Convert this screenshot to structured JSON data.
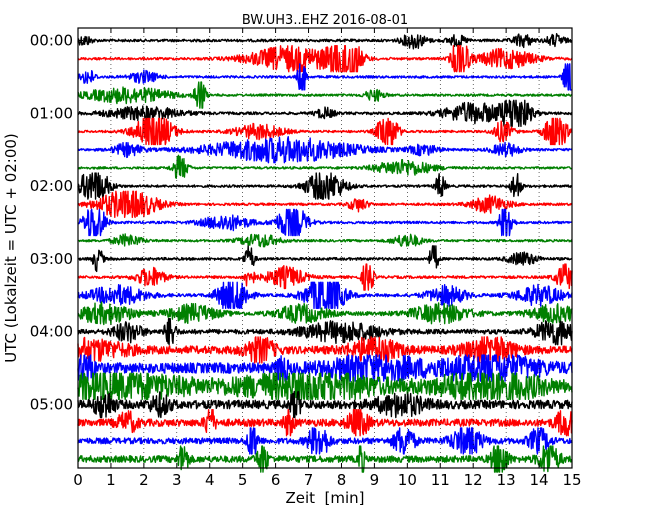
{
  "chart_data": {
    "type": "line",
    "title": "BW.UH3..EHZ 2016-08-01",
    "xlabel": "Zeit  [min]",
    "ylabel": "UTC (Lokalzeit = UTC + 02:00)",
    "xlim": [
      0,
      15
    ],
    "x_ticks": [
      "0",
      "1",
      "2",
      "3",
      "4",
      "5",
      "6",
      "7",
      "8",
      "9",
      "10",
      "11",
      "12",
      "13",
      "14",
      "15"
    ],
    "y_tick_labels": [
      "00:00",
      "01:00",
      "02:00",
      "03:00",
      "04:00",
      "05:00"
    ],
    "grid": true,
    "legend": "none",
    "trace_minutes_per_line": 15,
    "series": [
      {
        "start": "00:00",
        "color": "#000000",
        "noise": 0.2,
        "bursts": [
          [
            0.2,
            0.8,
            0.15
          ],
          [
            10.2,
            1.2,
            0.25
          ],
          [
            11.5,
            0.8,
            0.2
          ],
          [
            13.5,
            1.0,
            0.2
          ],
          [
            14.5,
            0.9,
            0.2
          ]
        ]
      },
      {
        "start": "00:15",
        "color": "#ff0000",
        "noise": 0.18,
        "bursts": [
          [
            6.5,
            2.0,
            0.9
          ],
          [
            8.1,
            4.5,
            0.3
          ],
          [
            11.6,
            5.0,
            0.15
          ],
          [
            13.0,
            1.5,
            0.6
          ]
        ]
      },
      {
        "start": "00:30",
        "color": "#0000ff",
        "noise": 0.18,
        "bursts": [
          [
            0.3,
            1.2,
            0.15
          ],
          [
            2.0,
            0.9,
            0.3
          ],
          [
            6.8,
            3.5,
            0.08
          ],
          [
            14.9,
            4.0,
            0.1
          ]
        ]
      },
      {
        "start": "00:45",
        "color": "#008000",
        "noise": 0.17,
        "bursts": [
          [
            1.5,
            1.2,
            0.9
          ],
          [
            3.7,
            4.0,
            0.1
          ],
          [
            9.0,
            0.9,
            0.2
          ]
        ]
      },
      {
        "start": "01:00",
        "color": "#000000",
        "noise": 0.2,
        "bursts": [
          [
            2.0,
            1.0,
            0.8
          ],
          [
            7.5,
            0.8,
            0.2
          ],
          [
            12.0,
            1.6,
            0.6
          ],
          [
            13.3,
            3.0,
            0.3
          ]
        ]
      },
      {
        "start": "01:15",
        "color": "#ff0000",
        "noise": 0.17,
        "bursts": [
          [
            2.3,
            3.0,
            0.4
          ],
          [
            5.5,
            1.2,
            0.5
          ],
          [
            9.4,
            3.5,
            0.2
          ],
          [
            12.9,
            1.6,
            0.2
          ],
          [
            14.5,
            4.5,
            0.2
          ]
        ]
      },
      {
        "start": "01:30",
        "color": "#0000ff",
        "noise": 0.18,
        "bursts": [
          [
            1.5,
            1.0,
            0.3
          ],
          [
            6.2,
            2.0,
            1.5
          ],
          [
            10.5,
            0.8,
            0.3
          ],
          [
            13.0,
            1.0,
            0.3
          ]
        ]
      },
      {
        "start": "01:45",
        "color": "#008000",
        "noise": 0.17,
        "bursts": [
          [
            3.1,
            2.0,
            0.15
          ],
          [
            9.9,
            1.2,
            0.6
          ]
        ]
      },
      {
        "start": "02:00",
        "color": "#000000",
        "noise": 0.18,
        "bursts": [
          [
            0.5,
            3.0,
            0.3
          ],
          [
            7.5,
            2.5,
            0.4
          ],
          [
            11.0,
            2.0,
            0.1
          ],
          [
            13.3,
            2.5,
            0.1
          ]
        ]
      },
      {
        "start": "02:15",
        "color": "#ff0000",
        "noise": 0.18,
        "bursts": [
          [
            1.5,
            2.5,
            0.6
          ],
          [
            8.5,
            1.0,
            0.2
          ],
          [
            12.5,
            1.3,
            0.4
          ]
        ]
      },
      {
        "start": "02:30",
        "color": "#0000ff",
        "noise": 0.18,
        "bursts": [
          [
            0.5,
            4.0,
            0.2
          ],
          [
            4.5,
            1.2,
            0.5
          ],
          [
            6.5,
            3.0,
            0.3
          ],
          [
            13.0,
            4.5,
            0.12
          ]
        ]
      },
      {
        "start": "02:45",
        "color": "#008000",
        "noise": 0.17,
        "bursts": [
          [
            1.5,
            0.9,
            0.3
          ],
          [
            5.5,
            1.0,
            0.4
          ],
          [
            10.0,
            1.0,
            0.3
          ]
        ]
      },
      {
        "start": "03:00",
        "color": "#000000",
        "noise": 0.2,
        "bursts": [
          [
            0.6,
            2.0,
            0.1
          ],
          [
            5.2,
            2.2,
            0.1
          ],
          [
            10.8,
            3.2,
            0.08
          ],
          [
            13.5,
            1.0,
            0.3
          ]
        ]
      },
      {
        "start": "03:15",
        "color": "#ff0000",
        "noise": 0.2,
        "bursts": [
          [
            2.2,
            1.5,
            0.3
          ],
          [
            5.2,
            1.8,
            0.1
          ],
          [
            6.3,
            1.6,
            0.4
          ],
          [
            8.8,
            4.0,
            0.1
          ],
          [
            14.8,
            2.0,
            0.2
          ]
        ]
      },
      {
        "start": "03:30",
        "color": "#0000ff",
        "noise": 0.22,
        "bursts": [
          [
            1.2,
            1.5,
            0.6
          ],
          [
            4.7,
            3.5,
            0.3
          ],
          [
            7.5,
            3.5,
            0.4
          ],
          [
            11.2,
            1.5,
            0.4
          ],
          [
            14.0,
            1.5,
            0.5
          ]
        ]
      },
      {
        "start": "03:45",
        "color": "#008000",
        "noise": 0.3,
        "bursts": [
          [
            0.8,
            1.5,
            0.6
          ],
          [
            3.5,
            1.3,
            0.5
          ],
          [
            6.8,
            1.3,
            0.5
          ],
          [
            11.0,
            1.4,
            0.6
          ],
          [
            14.5,
            1.3,
            0.5
          ]
        ]
      },
      {
        "start": "04:00",
        "color": "#000000",
        "noise": 0.35,
        "bursts": [
          [
            2.8,
            3.2,
            0.1
          ],
          [
            1.5,
            1.5,
            0.3
          ],
          [
            8.0,
            1.5,
            0.8
          ],
          [
            14.5,
            2.0,
            0.4
          ]
        ]
      },
      {
        "start": "04:15",
        "color": "#ff0000",
        "noise": 0.6,
        "bursts": [
          [
            0.3,
            1.5,
            0.8
          ],
          [
            5.5,
            2.0,
            0.3
          ],
          [
            9.0,
            1.8,
            0.5
          ],
          [
            12.5,
            2.0,
            0.5
          ]
        ]
      },
      {
        "start": "04:30",
        "color": "#0000ff",
        "noise": 0.8,
        "bursts": [
          [
            0.2,
            2.5,
            0.2
          ],
          [
            6.2,
            3.0,
            0.1
          ],
          [
            9.0,
            1.8,
            1.0
          ],
          [
            12.5,
            2.0,
            1.0
          ]
        ]
      },
      {
        "start": "04:45",
        "color": "#008000",
        "noise": 0.85,
        "bursts": [
          [
            1.0,
            2.0,
            1.5
          ],
          [
            7.0,
            2.0,
            1.5
          ],
          [
            12.5,
            2.5,
            1.0
          ]
        ]
      },
      {
        "start": "05:00",
        "color": "#000000",
        "noise": 0.65,
        "bursts": [
          [
            0.8,
            2.0,
            0.2
          ],
          [
            2.5,
            1.5,
            0.2
          ],
          [
            6.6,
            2.5,
            0.1
          ],
          [
            9.8,
            1.5,
            0.5
          ]
        ]
      },
      {
        "start": "05:15",
        "color": "#ff0000",
        "noise": 0.55,
        "bursts": [
          [
            1.5,
            1.5,
            0.2
          ],
          [
            4.0,
            2.5,
            0.1
          ],
          [
            6.4,
            2.2,
            0.1
          ],
          [
            8.5,
            2.5,
            0.2
          ],
          [
            14.8,
            2.0,
            0.2
          ]
        ]
      },
      {
        "start": "05:30",
        "color": "#0000ff",
        "noise": 0.45,
        "bursts": [
          [
            5.3,
            3.8,
            0.1
          ],
          [
            7.3,
            3.0,
            0.2
          ],
          [
            9.9,
            2.5,
            0.2
          ],
          [
            11.8,
            2.5,
            0.3
          ],
          [
            14.0,
            2.0,
            0.2
          ]
        ]
      },
      {
        "start": "05:45",
        "color": "#008000",
        "noise": 0.5,
        "bursts": [
          [
            3.2,
            2.5,
            0.1
          ],
          [
            5.6,
            3.0,
            0.1
          ],
          [
            8.6,
            4.5,
            0.05
          ],
          [
            12.8,
            3.5,
            0.15
          ],
          [
            14.3,
            2.5,
            0.2
          ]
        ]
      }
    ]
  }
}
